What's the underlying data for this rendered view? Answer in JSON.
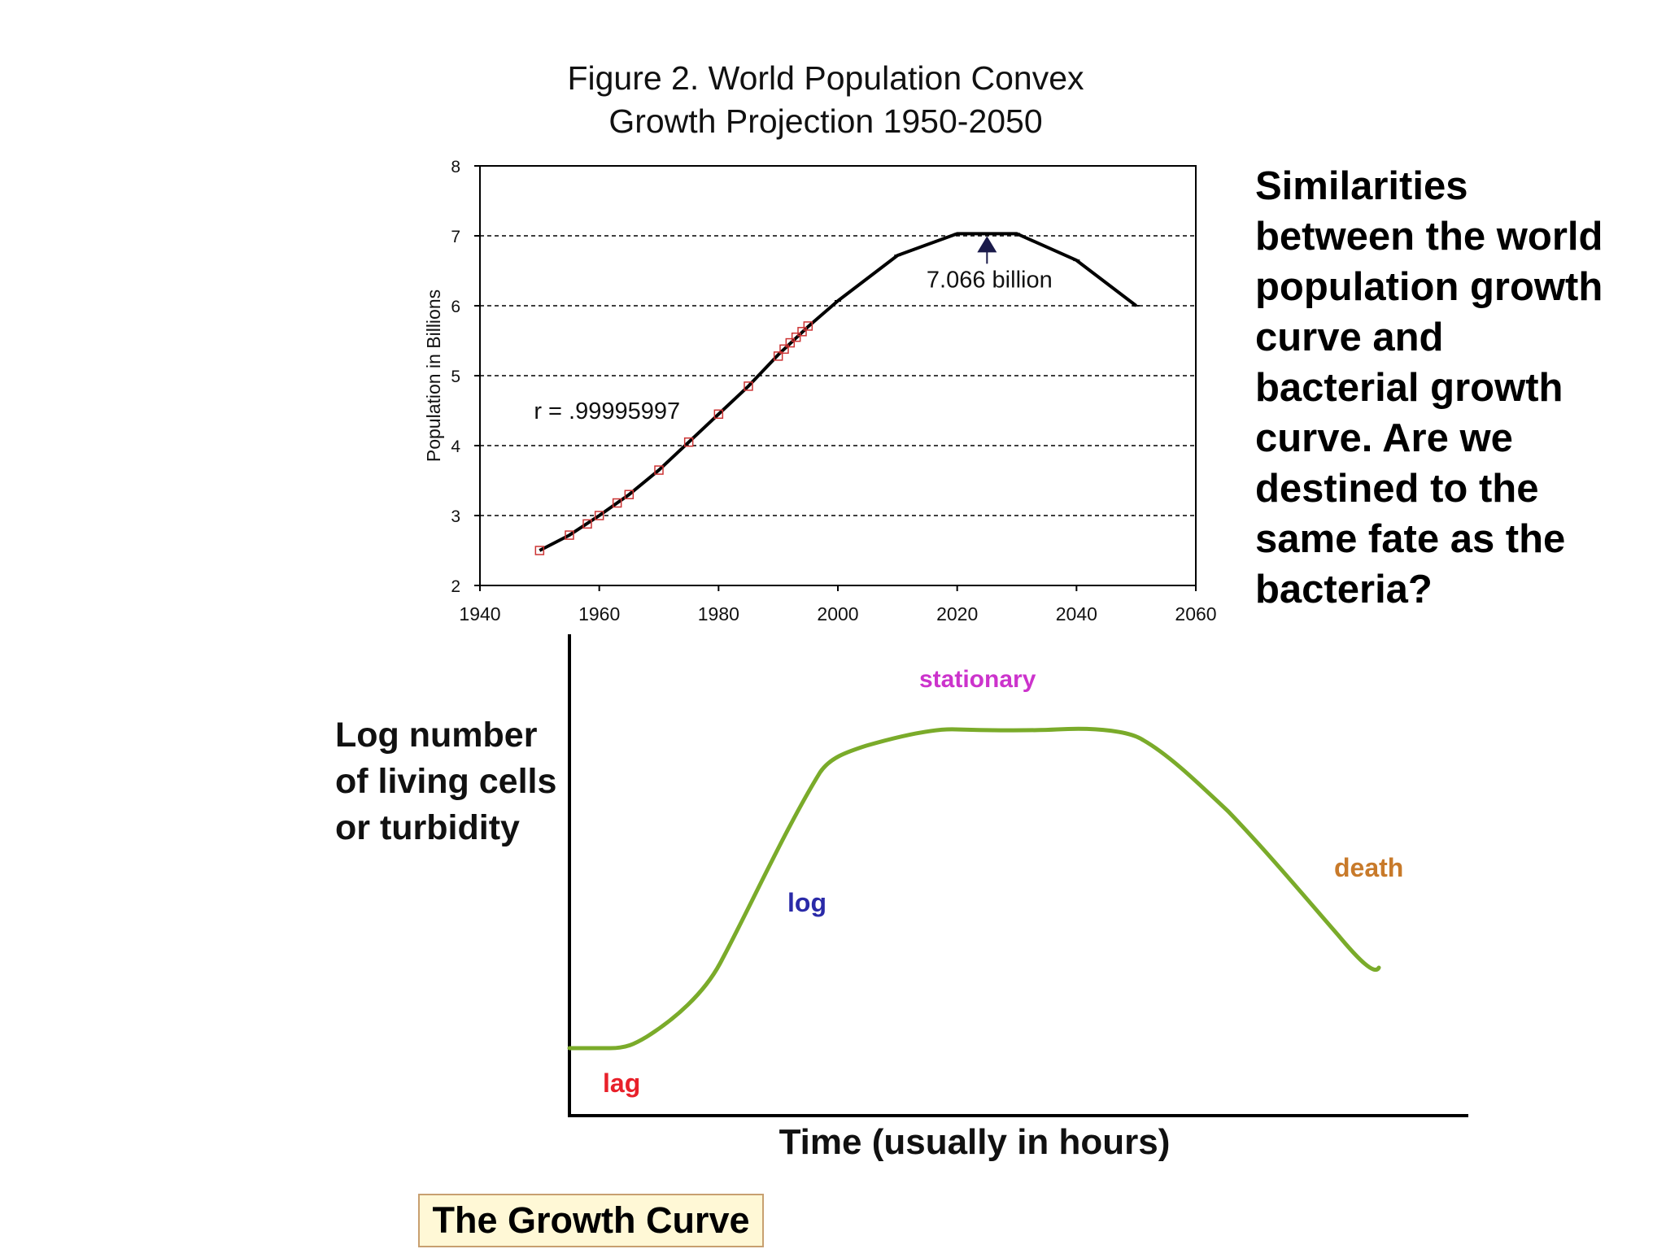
{
  "chart_data": [
    {
      "type": "line",
      "title": [
        "Figure 2.  World Population Convex",
        "Growth Projection  1950-2050"
      ],
      "ylabel": "Population in Billions",
      "xlabel": "",
      "xlim": [
        1940,
        2060
      ],
      "ylim": [
        2,
        8
      ],
      "x_ticks": [
        1940,
        1960,
        1980,
        2000,
        2020,
        2040,
        2060
      ],
      "y_ticks": [
        2,
        3,
        4,
        5,
        6,
        7,
        8
      ],
      "grid": "horizontal dashed",
      "line_points": [
        [
          1950,
          2.5
        ],
        [
          1955,
          2.72
        ],
        [
          1960,
          3.0
        ],
        [
          1965,
          3.3
        ],
        [
          1970,
          3.65
        ],
        [
          1975,
          4.05
        ],
        [
          1980,
          4.45
        ],
        [
          1985,
          4.85
        ],
        [
          1990,
          5.3
        ],
        [
          1995,
          5.7
        ],
        [
          2000,
          6.07
        ],
        [
          2010,
          6.72
        ],
        [
          2020,
          7.03
        ],
        [
          2030,
          7.03
        ],
        [
          2040,
          6.65
        ],
        [
          2050,
          6.0
        ]
      ],
      "marker_points": [
        [
          1950,
          2.5
        ],
        [
          1955,
          2.72
        ],
        [
          1958,
          2.88
        ],
        [
          1960,
          3.0
        ],
        [
          1963,
          3.18
        ],
        [
          1965,
          3.3
        ],
        [
          1970,
          3.65
        ],
        [
          1975,
          4.05
        ],
        [
          1980,
          4.45
        ],
        [
          1985,
          4.85
        ],
        [
          1990,
          5.28
        ],
        [
          1991,
          5.38
        ],
        [
          1992,
          5.47
        ],
        [
          1993,
          5.55
        ],
        [
          1994,
          5.63
        ],
        [
          1995,
          5.71
        ]
      ],
      "annotations": [
        {
          "text": "7.066 billion",
          "x": 2025,
          "y": 7.066
        },
        {
          "text": "r = .99995997",
          "x": 1950,
          "y": 4.5
        }
      ],
      "colors": {
        "line": "#000000",
        "marker": "#cc3333",
        "arrow": "#1a1a4a"
      }
    },
    {
      "type": "line",
      "title": "",
      "ylabel": [
        "Log number",
        "of living cells",
        "or turbidity"
      ],
      "xlabel": "Time (usually in hours)",
      "phases": [
        {
          "label": "lag",
          "color": "#e8202a"
        },
        {
          "label": "log",
          "color": "#2a2aa8"
        },
        {
          "label": "stationary",
          "color": "#cc33cc"
        },
        {
          "label": "death",
          "color": "#c87a2a"
        }
      ],
      "curve_color": "#7aab2a"
    }
  ],
  "text": {
    "lines": [
      "Similarities",
      "between the world",
      "population growth",
      "curve and",
      "bacterial growth",
      "curve.  Are we",
      "destined to the",
      "same fate as the",
      "bacteria?"
    ]
  },
  "caption": "The Growth Curve"
}
